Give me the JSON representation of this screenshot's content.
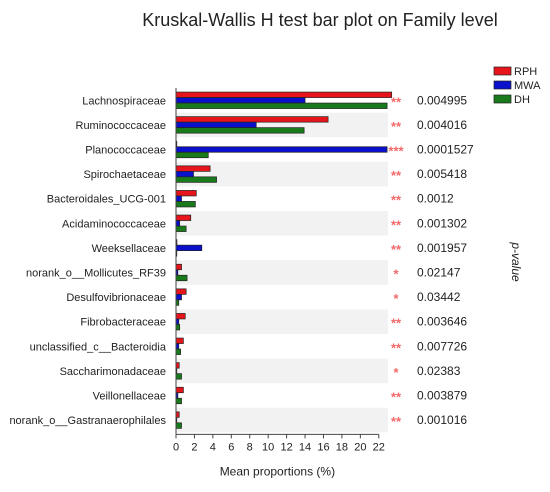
{
  "chart_data": {
    "type": "bar",
    "orientation": "horizontal",
    "title": "Kruskal-Wallis H test bar plot on Family level",
    "xlabel": "Mean proportions (%)",
    "right_axis_label": "p-value",
    "xlim": [
      0,
      23
    ],
    "xticks": [
      0,
      2,
      4,
      6,
      8,
      10,
      12,
      14,
      16,
      18,
      20,
      22
    ],
    "legend_position": "top-right",
    "categories": [
      "Lachnospiraceae",
      "Ruminococcaceae",
      "Planococcaceae",
      "Spirochaetaceae",
      "Bacteroidales_UCG-001",
      "Acidaminococcaceae",
      "Weeksellaceae",
      "norank_o__Mollicutes_RF39",
      "Desulfovibrionaceae",
      "Fibrobacteraceae",
      "unclassified_c__Bacteroidia",
      "Saccharimonadaceae",
      "Veillonellaceae",
      "norank_o__Gastranaerophilales"
    ],
    "series": [
      {
        "name": "RPH",
        "color": "#e8141b",
        "values": [
          23.4,
          16.5,
          0.05,
          3.7,
          2.2,
          1.6,
          0.1,
          0.6,
          1.1,
          1.0,
          0.8,
          0.35,
          0.8,
          0.35
        ]
      },
      {
        "name": "MWA",
        "color": "#0a10cc",
        "values": [
          14.0,
          8.7,
          22.9,
          1.9,
          0.6,
          0.4,
          2.8,
          0.2,
          0.6,
          0.3,
          0.3,
          0.05,
          0.2,
          0.05
        ]
      },
      {
        "name": "DH",
        "color": "#187a1a",
        "values": [
          22.9,
          13.9,
          3.5,
          4.4,
          2.1,
          1.1,
          0.05,
          1.2,
          0.3,
          0.4,
          0.5,
          0.6,
          0.6,
          0.6
        ]
      }
    ],
    "significance": [
      "**",
      "**",
      "***",
      "**",
      "**",
      "**",
      "**",
      "*",
      "*",
      "**",
      "**",
      "*",
      "**",
      "**"
    ],
    "p_values": [
      "0.004995",
      "0.004016",
      "0.0001527",
      "0.005418",
      "0.0012",
      "0.001302",
      "0.001957",
      "0.02147",
      "0.03442",
      "0.003646",
      "0.007726",
      "0.02383",
      "0.003879",
      "0.001016"
    ],
    "star_color": "#f06a6a",
    "stripe_color": "#f2f2f2"
  }
}
